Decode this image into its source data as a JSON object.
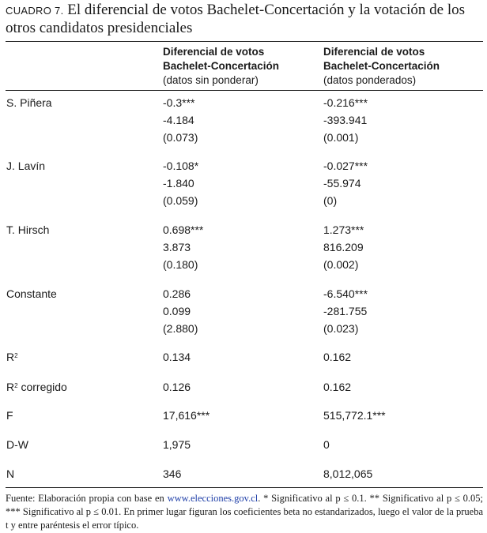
{
  "title": {
    "label": "CUADRO 7.",
    "text": " El diferencial de votos Bachelet-Concertación y la votación de los otros candidatos presidenciales"
  },
  "columns": [
    {
      "line1": "Diferencial de votos",
      "line2": "Bachelet-Concertación",
      "line3": "(datos sin ponderar)"
    },
    {
      "line1": "Diferencial de votos",
      "line2": "Bachelet-Concertación",
      "line3": " (datos ponderados)"
    }
  ],
  "rows": [
    {
      "label": "S. Piñera",
      "c1": [
        "-0.3***",
        "-4.184",
        "(0.073)"
      ],
      "c2": [
        "-0.216***",
        "-393.941",
        "(0.001)"
      ]
    },
    {
      "label": "J. Lavín",
      "c1": [
        "-0.108*",
        "-1.840",
        "(0.059)"
      ],
      "c2": [
        "-0.027***",
        "-55.974",
        "(0)"
      ]
    },
    {
      "label": "T. Hirsch",
      "c1": [
        "0.698***",
        "3.873",
        "(0.180)"
      ],
      "c2": [
        "1.273***",
        "816.209",
        "(0.002)"
      ]
    },
    {
      "label": "Constante",
      "c1": [
        "0.286",
        "0.099",
        "(2.880)"
      ],
      "c2": [
        "-6.540***",
        "-281.755",
        "(0.023)"
      ]
    }
  ],
  "stats": [
    {
      "label": "R",
      "sup": "2",
      "suffix": "",
      "c1": "0.134",
      "c2": "0.162"
    },
    {
      "label": "R",
      "sup": "2",
      "suffix": " corregido",
      "c1": "0.126",
      "c2": "0.162"
    },
    {
      "label": "F",
      "sup": "",
      "suffix": "",
      "c1": "17,616***",
      "c2": "515,772.1***"
    },
    {
      "label": "D-W",
      "sup": "",
      "suffix": "",
      "c1": "1,975",
      "c2": "0"
    },
    {
      "label": "N",
      "sup": "",
      "suffix": "",
      "c1": "346",
      "c2": "8,012,065"
    }
  ],
  "footnote": {
    "before": "Fuente: Elaboración propia con base en ",
    "link": "www.elecciones.gov.cl",
    "after": ". * Significativo al p ≤ 0.1. ** Significativo al p ≤ 0.05; *** Significativo al p ≤ 0.01. En primer lugar figuran los coeficientes beta no estandarizados, luego el valor de la prueba t y entre paréntesis el error típico."
  },
  "colors": {
    "link": "#1f3fa8",
    "rule": "#222222"
  }
}
